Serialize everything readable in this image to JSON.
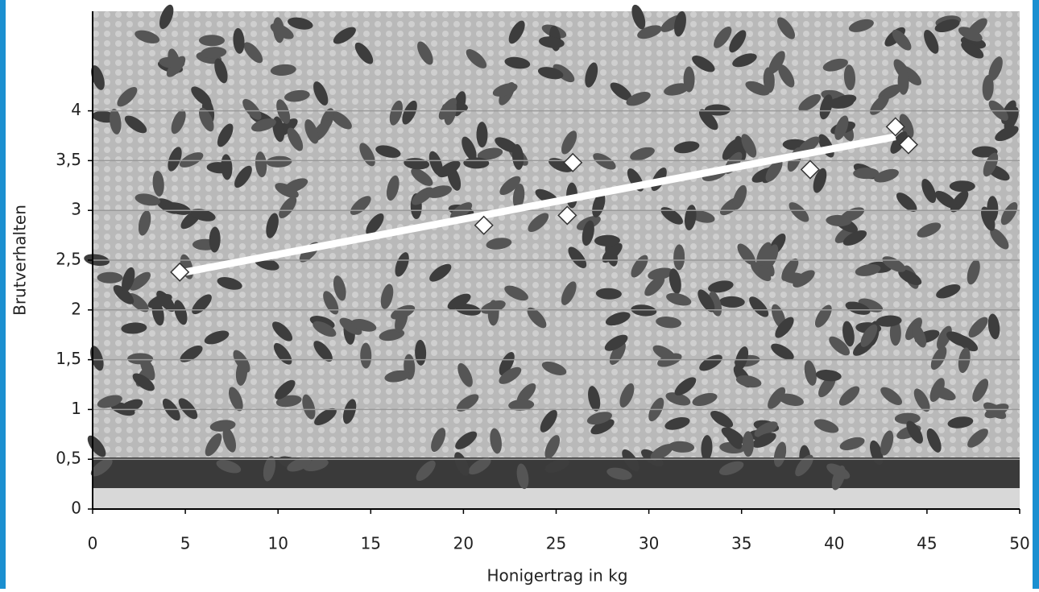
{
  "chart_data": {
    "type": "scatter",
    "x_label": "Honigertrag in kg",
    "y_label": "Brutverhalten",
    "x": [
      4.7,
      21.1,
      25.6,
      25.9,
      38.7,
      43.3,
      44.0
    ],
    "values": [
      2.38,
      2.85,
      2.95,
      3.48,
      3.41,
      3.84,
      3.66
    ],
    "color": "#ffffff",
    "trendline": {
      "x": [
        4.7,
        43.3
      ],
      "values": [
        2.37,
        3.74
      ],
      "color": "#ffffff"
    },
    "xlim": [
      0,
      50
    ],
    "ylim": [
      0,
      5
    ],
    "xticks": [
      0,
      5,
      10,
      15,
      20,
      25,
      30,
      35,
      40,
      45,
      50
    ],
    "yticks": [
      0,
      {
        "value": 0.5,
        "label": "0,5"
      },
      1,
      {
        "value": 1.5,
        "label": "1,5"
      },
      2,
      {
        "value": 2.5,
        "label": "2,5"
      },
      3,
      {
        "value": 3.5,
        "label": "3,5"
      },
      4
    ],
    "grid": true
  }
}
